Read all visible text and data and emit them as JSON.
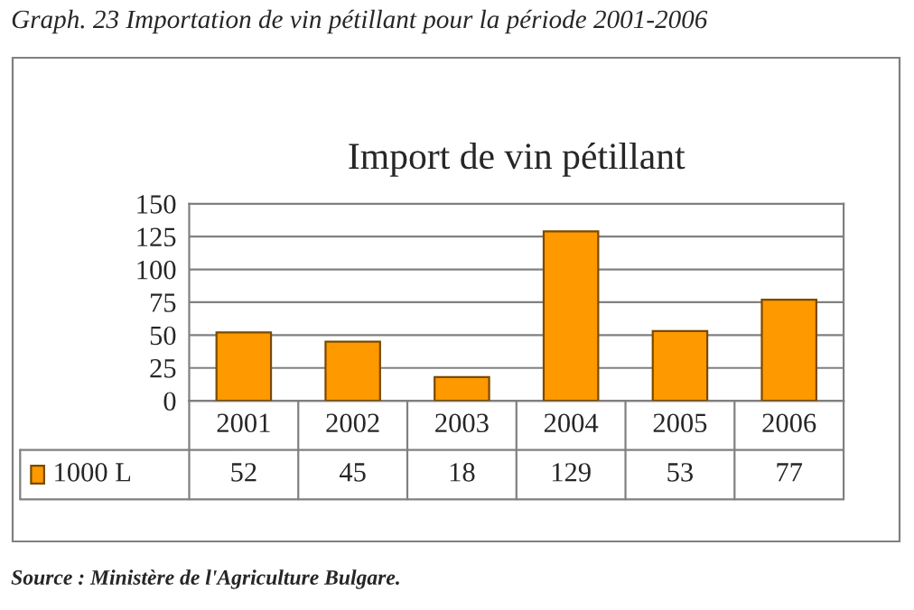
{
  "chart_data": {
    "type": "bar",
    "title": "Import de vin pétillant",
    "categories": [
      "2001",
      "2002",
      "2003",
      "2004",
      "2005",
      "2006"
    ],
    "series": [
      {
        "name": "1000 L",
        "color": "#ff9900",
        "values": [
          52,
          45,
          18,
          129,
          53,
          77
        ]
      }
    ],
    "ylim": [
      0,
      150
    ],
    "yticks": [
      0,
      25,
      50,
      75,
      100,
      125,
      150
    ],
    "grid": "y",
    "legend": "bottom",
    "data_labels": true,
    "annotations": [
      "Graph. 23 Importation de vin pétillant pour la période 2001-2006",
      "Source : Ministère de l'Agriculture Bulgare."
    ]
  }
}
